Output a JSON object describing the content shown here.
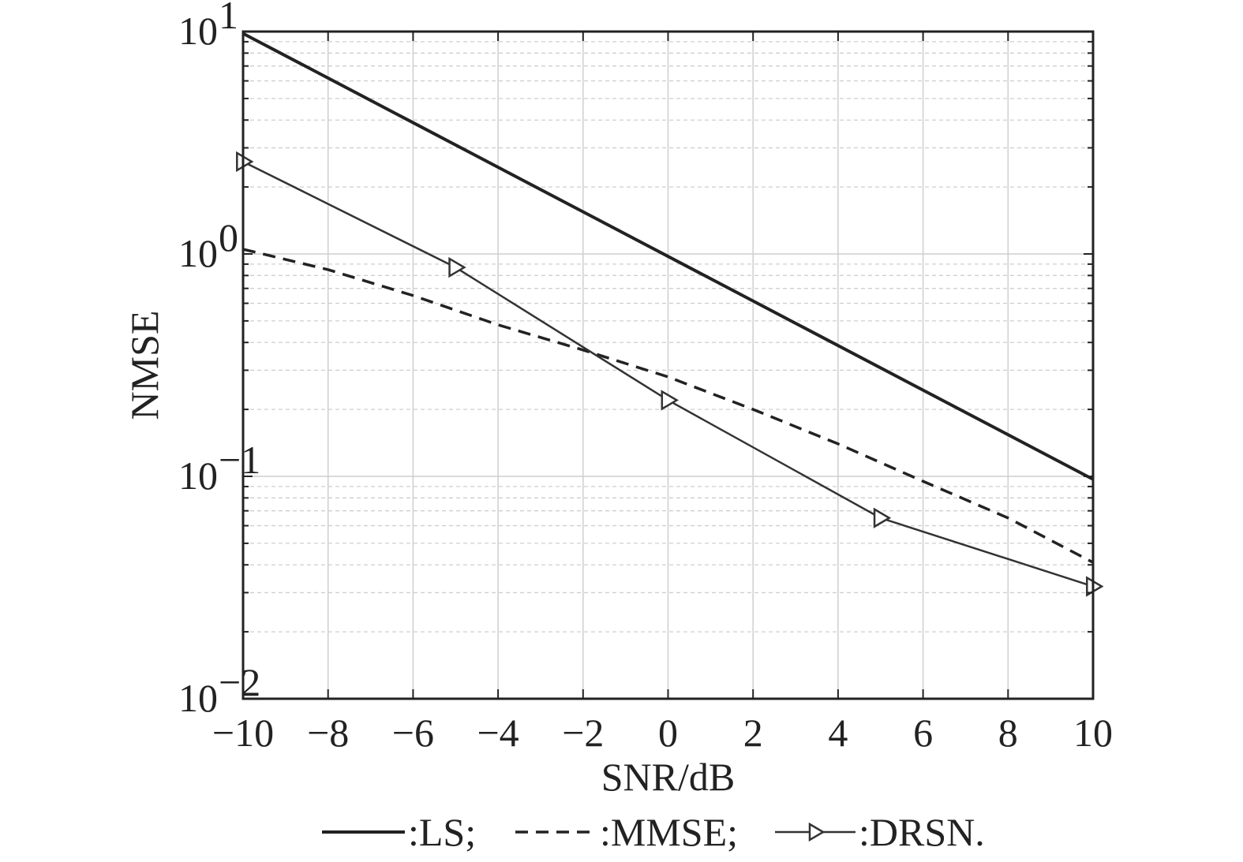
{
  "chart_data": {
    "type": "line",
    "xlabel": "SNR/dB",
    "ylabel": "NMSE",
    "xlim": [
      -10,
      10
    ],
    "ylim": [
      0.01,
      10
    ],
    "yscale": "log",
    "grid": true,
    "legend_position": "bottom",
    "x_ticks": [
      -10,
      -8,
      -6,
      -4,
      -2,
      0,
      2,
      4,
      6,
      8,
      10
    ],
    "x_tick_labels": [
      "−10",
      "−8",
      "−6",
      "−4",
      "−2",
      "0",
      "2",
      "4",
      "6",
      "8",
      "10"
    ],
    "y_ticks": [
      {
        "value": 10,
        "base": "10",
        "exp": "1"
      },
      {
        "value": 1,
        "base": "10",
        "exp": "0"
      },
      {
        "value": 0.1,
        "base": "10",
        "exp": "−1"
      },
      {
        "value": 0.01,
        "base": "10",
        "exp": "−2"
      }
    ],
    "series": [
      {
        "name": ":LS;",
        "style": "solid-thick",
        "marker": "none",
        "color": "#222222",
        "x": [
          -10,
          10
        ],
        "y": [
          9.8,
          0.097
        ]
      },
      {
        "name": ":MMSE;",
        "style": "dashed",
        "marker": "none",
        "color": "#222222",
        "x": [
          -10,
          -8,
          -6,
          -4,
          -2,
          0,
          2,
          4,
          6,
          8,
          10
        ],
        "y": [
          1.05,
          0.85,
          0.65,
          0.48,
          0.37,
          0.28,
          0.2,
          0.14,
          0.095,
          0.065,
          0.041
        ]
      },
      {
        "name": ":DRSN.",
        "style": "solid",
        "marker": "triangle-right",
        "color": "#333333",
        "x": [
          -10,
          -5,
          0,
          5,
          10
        ],
        "y": [
          2.6,
          0.87,
          0.22,
          0.065,
          0.032
        ]
      }
    ]
  }
}
